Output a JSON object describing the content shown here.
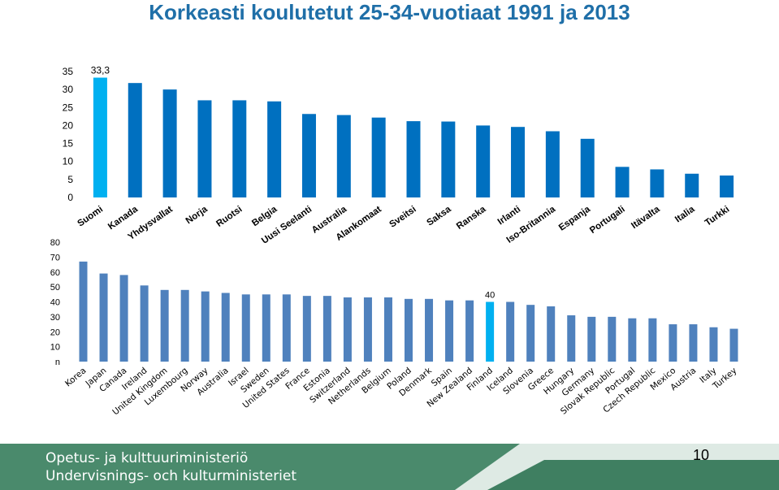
{
  "slide": {
    "title": "Korkeasti koulutetut 25-34-vuotiaat 1991 ja 2013",
    "footer_line1": "Opetus- ja kulttuuriministeriö",
    "footer_line2": "Undervisnings- och kulturministeriet",
    "page_number": "10"
  },
  "colors": {
    "bar": "#0070c0",
    "bar_highlight": "#00b0f0",
    "bar2": "#4f81bd",
    "footer": "#4a8a6c",
    "title": "#1f6fa8"
  },
  "chart_data": [
    {
      "type": "bar",
      "year": "1991",
      "title": "",
      "categories": [
        "Suomi",
        "Kanada",
        "Yhdysvallat",
        "Norja",
        "Ruotsi",
        "Belgia",
        "Uusi Seelanti",
        "Australia",
        "Alankomaat",
        "Sveitsi",
        "Saksa",
        "Ranska",
        "Irlanti",
        "Iso-Britannia",
        "Espanja",
        "Portugali",
        "Itävalta",
        "Italia",
        "Turkki"
      ],
      "values": [
        33.3,
        31.8,
        30.0,
        27.0,
        27.0,
        26.7,
        23.2,
        22.9,
        22.2,
        21.2,
        21.1,
        20.0,
        19.6,
        18.4,
        16.3,
        8.5,
        7.8,
        6.6,
        6.1
      ],
      "highlight_index": 0,
      "data_labels": [
        {
          "index": 0,
          "text": "33,3"
        }
      ],
      "y_ticks": [
        "0",
        "5",
        "10",
        "15",
        "20",
        "25",
        "30",
        "35"
      ],
      "ylim": [
        0,
        35
      ],
      "grid": false
    },
    {
      "type": "bar",
      "year": "2013",
      "title": "",
      "categories": [
        "Korea",
        "Japan",
        "Canada",
        "Ireland",
        "United Kingdom",
        "Luxembourg",
        "Norway",
        "Australia",
        "Israel",
        "Sweden",
        "United States",
        "France",
        "Estonia",
        "Switzerland",
        "Netherlands",
        "Belgium",
        "Poland",
        "Denmark",
        "Spain",
        "New Zealand",
        "Finland",
        "Iceland",
        "Slovenia",
        "Greece",
        "Hungary",
        "Germany",
        "Slovak Republic",
        "Portugal",
        "Czech Republic",
        "Mexico",
        "Austria",
        "Italy",
        "Turkey"
      ],
      "values": [
        67,
        59,
        58,
        51,
        48,
        48,
        47,
        46,
        45,
        45,
        45,
        44,
        44,
        43,
        43,
        43,
        42,
        42,
        41,
        41,
        40,
        40,
        38,
        37,
        31,
        30,
        30,
        29,
        29,
        25,
        25,
        23,
        22
      ],
      "highlight_index": 20,
      "data_labels": [
        {
          "index": 20,
          "text": "40"
        }
      ],
      "y_ticks": [
        "n",
        "10",
        "20",
        "30",
        "40",
        "50",
        "60",
        "70",
        "80"
      ],
      "ylim": [
        0,
        80
      ],
      "grid": false
    }
  ]
}
